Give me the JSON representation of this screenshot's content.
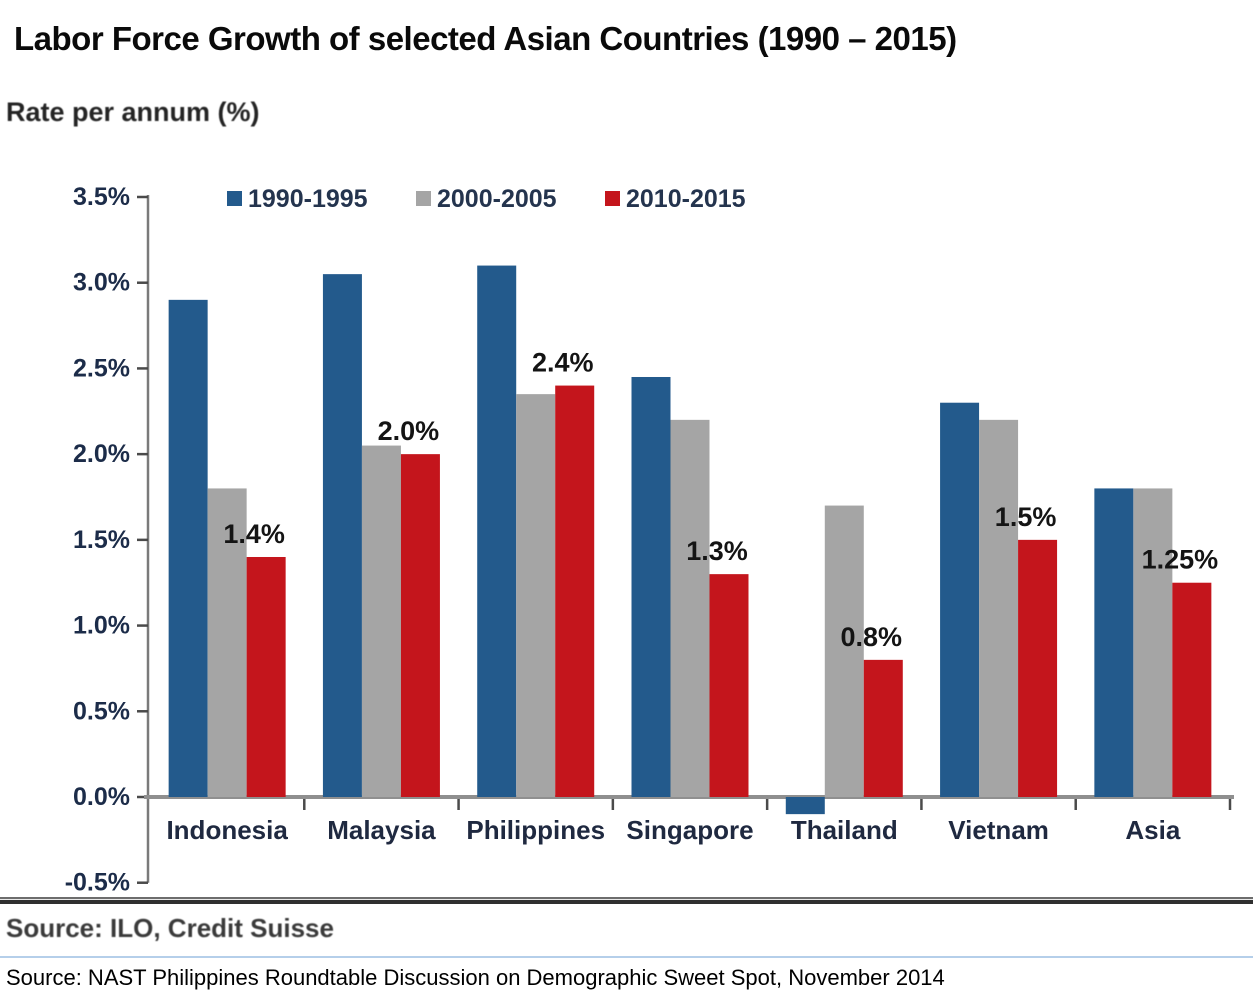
{
  "page": {
    "title": "Labor Force Growth of selected Asian Countries (1990 – 2015)",
    "source_inner": "Source: ILO, Credit Suisse",
    "source_outer": "Source: NAST Philippines Roundtable Discussion on Demographic Sweet Spot, November 2014"
  },
  "chart_data": {
    "type": "bar",
    "title": "Labor Force Growth of selected Asian Countries (1990 – 2015)",
    "ylabel": "Rate per annum (%)",
    "xlabel": "",
    "categories": [
      "Indonesia",
      "Malaysia",
      "Philippines",
      "Singapore",
      "Thailand",
      "Vietnam",
      "Asia"
    ],
    "series": [
      {
        "name": "1990-1995",
        "color": "#235a8c",
        "values": [
          2.9,
          3.05,
          3.1,
          2.45,
          -0.1,
          2.3,
          1.8
        ]
      },
      {
        "name": "2000-2005",
        "color": "#a5a5a5",
        "values": [
          1.8,
          2.05,
          2.35,
          2.2,
          1.7,
          2.2,
          1.8
        ]
      },
      {
        "name": "2010-2015",
        "color": "#c4151c",
        "values": [
          1.4,
          2.0,
          2.4,
          1.3,
          0.8,
          1.5,
          1.25
        ],
        "data_labels": [
          "1.4%",
          "2.0%",
          "2.4%",
          "1.3%",
          "0.8%",
          "1.5%",
          "1.25%"
        ]
      }
    ],
    "ylim": [
      -0.5,
      3.5
    ],
    "ytick_step": 0.5,
    "ytick_labels": [
      "3.5%",
      "3.0%",
      "2.5%",
      "2.0%",
      "1.5%",
      "1.0%",
      "0.5%",
      "0.0%",
      "-0.5%"
    ],
    "legend_position": "top-inside",
    "grid": false,
    "colors": {
      "axis_line": "#7a7a7a",
      "baseline": "#8f8f8f",
      "tick": "#4a4a4a",
      "tick_label": "#1c2c49",
      "category_label": "#1f2940",
      "legend_label": "#24344e",
      "data_label": "#141414"
    }
  }
}
